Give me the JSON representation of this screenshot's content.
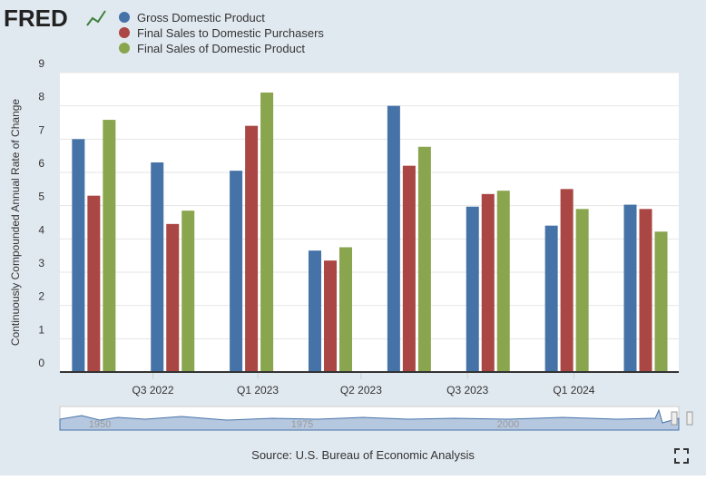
{
  "chart_data": {
    "type": "bar",
    "logo": "FRED",
    "ylabel": "Continuously Compounded Annual Rate of Change",
    "source": "Source: U.S. Bureau of Economic Analysis",
    "ylim": [
      0,
      9
    ],
    "yticks": [
      0,
      1,
      2,
      3,
      4,
      5,
      6,
      7,
      8,
      9
    ],
    "grid": true,
    "xlim": [
      -0.43,
      7.42
    ],
    "xticks": [
      {
        "value": 0.75,
        "label": "Q3 2022"
      },
      {
        "value": 2.08,
        "label": "Q1 2023"
      },
      {
        "value": 3.39,
        "label": "Q2 2023"
      },
      {
        "value": 4.74,
        "label": "Q3 2023"
      },
      {
        "value": 6.09,
        "label": "Q1 2024"
      }
    ],
    "series": [
      {
        "name": "Gross Domestic Product",
        "color": "#4572a7",
        "values": [
          7.0,
          6.3,
          6.05,
          3.65,
          8.0,
          4.97,
          4.4,
          5.03
        ]
      },
      {
        "name": "Final Sales to Domestic Purchasers",
        "color": "#aa4643",
        "values": [
          5.3,
          4.45,
          7.4,
          3.35,
          6.2,
          5.35,
          5.5,
          4.9
        ]
      },
      {
        "name": "Final Sales of Domestic Product",
        "color": "#89a54e",
        "values": [
          7.58,
          4.85,
          8.4,
          3.75,
          6.77,
          5.45,
          4.9,
          4.22
        ]
      }
    ],
    "navigator": {
      "labels": [
        "1950",
        "1975",
        "2000"
      ]
    }
  }
}
